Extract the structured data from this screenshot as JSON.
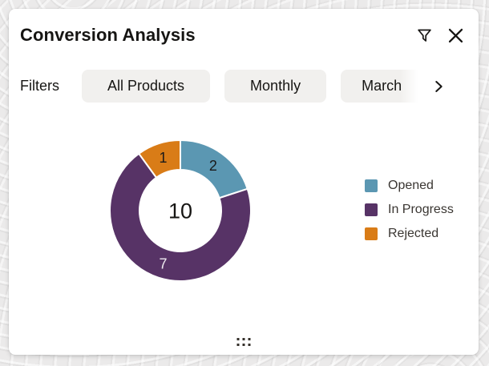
{
  "header": {
    "title": "Conversion Analysis"
  },
  "filters": {
    "label": "Filters",
    "pills": [
      {
        "label": "All Products"
      },
      {
        "label": "Monthly"
      },
      {
        "label": "March"
      }
    ]
  },
  "chart_data": {
    "type": "pie",
    "subtype": "donut",
    "title": "Conversion Analysis",
    "categories": [
      "Opened",
      "In Progress",
      "Rejected"
    ],
    "values": [
      2,
      7,
      1
    ],
    "total": 10,
    "center_label": "10",
    "colors": [
      "#5B97B2",
      "#573366",
      "#D97C17"
    ],
    "slice_label_colors": [
      "#1A1A1A",
      "#EEEAF0",
      "#1A1A1A"
    ],
    "start_angle_deg": 0,
    "direction": "clockwise",
    "legend_position": "right"
  },
  "icons": {
    "filter": "funnel-filter-icon",
    "close": "close-x-icon",
    "scroll_right": "chevron-right-icon",
    "drag": "drag-handle-dots-icon"
  }
}
